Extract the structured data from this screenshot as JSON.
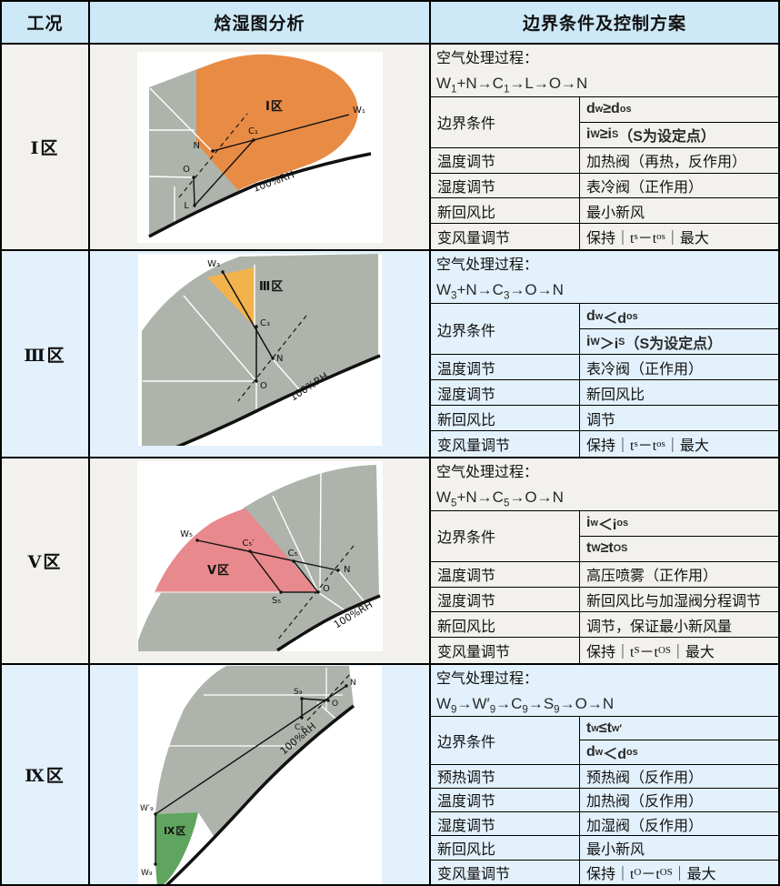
{
  "header": {
    "col1": "工况",
    "col2": "焓湿图分析",
    "col3": "边界条件及控制方案"
  },
  "labels": {
    "process": "空气处理过程：",
    "rh": "100%RH"
  },
  "colors": {
    "zone1_region": "#E88B45",
    "zone3_region": "#F2B24C",
    "zone5_region": "#E8898D",
    "zone9_region": "#5FA55F",
    "chart_gray": "#AEB4AB",
    "header_bg": "#CDE8F6",
    "row_light": "#F2F1EE",
    "row_blue": "#E2F1FB"
  },
  "rows": [
    {
      "zone": "Ⅰ区",
      "formula": "W~1~+N→C~1~→L→O→N",
      "details": [
        {
          "label": "边界条件",
          "values": [
            "d~w~≥d~os~",
            "i~W~≥i~S~（S为设定点）"
          ]
        },
        {
          "label": "温度调节",
          "values": [
            "加热阀（再热，反作用）"
          ]
        },
        {
          "label": "湿度调节",
          "values": [
            "表冷阀（正作用）"
          ]
        },
        {
          "label": "新回风比",
          "values": [
            "最小新风"
          ]
        },
        {
          "label": "变风量调节",
          "values": [
            "保持｜t~s~－t~os~｜最大"
          ]
        }
      ],
      "diagram": {
        "region_label": "Ⅰ区",
        "points": {
          "w": "W₁",
          "c": "C₁",
          "n": "N",
          "o": "O",
          "l": "L"
        }
      }
    },
    {
      "zone": "Ⅲ区",
      "formula": "W~3~+N→C~3~→O→N",
      "details": [
        {
          "label": "边界条件",
          "values": [
            "d~w~＜d~os~",
            "i~W~＞i~S~（S为设定点）"
          ]
        },
        {
          "label": "温度调节",
          "values": [
            "表冷阀（正作用）"
          ]
        },
        {
          "label": "湿度调节",
          "values": [
            "新回风比"
          ]
        },
        {
          "label": "新回风比",
          "values": [
            "调节"
          ]
        },
        {
          "label": "变风量调节",
          "values": [
            "保持｜t~s~－t~os~｜最大"
          ]
        }
      ],
      "diagram": {
        "region_label": "Ⅲ区",
        "points": {
          "w": "W₃",
          "c": "C₃",
          "n": "N",
          "o": "O"
        }
      }
    },
    {
      "zone": "Ⅴ区",
      "formula": "W~5~+N→C~5~→O→N",
      "details": [
        {
          "label": "边界条件",
          "values": [
            "i~w~＜i~os~",
            "t~W~≥t~OS~"
          ]
        },
        {
          "label": "温度调节",
          "values": [
            "高压喷雾（正作用）"
          ]
        },
        {
          "label": "湿度调节",
          "values": [
            "新回风比与加湿阀分程调节"
          ]
        },
        {
          "label": "新回风比",
          "values": [
            "调节，保证最小新风量"
          ]
        },
        {
          "label": "变风量调节",
          "values": [
            "保持｜t~S~－t~OS~｜最大"
          ]
        }
      ],
      "diagram": {
        "region_label": "Ⅴ区",
        "points": {
          "w": "W₅",
          "c1": "C₅′",
          "c2": "C₅",
          "n": "N",
          "o": "O",
          "s": "S₅"
        }
      }
    },
    {
      "zone": "Ⅸ区",
      "formula": "W~9~→W′~9~→C~9~→S~9~→O→N",
      "details": [
        {
          "label": "边界条件",
          "values": [
            "t~w~≤t~w′~",
            "d~w~＜d~os~"
          ]
        },
        {
          "label": "预热调节",
          "values": [
            "预热阀（反作用）"
          ]
        },
        {
          "label": "温度调节",
          "values": [
            "加热阀（反作用）"
          ]
        },
        {
          "label": "湿度调节",
          "values": [
            "加湿阀（反作用）"
          ]
        },
        {
          "label": "新回风比",
          "values": [
            "最小新风"
          ]
        },
        {
          "label": "变风量调节",
          "values": [
            "保持｜t~O~－t~OS~｜最大"
          ]
        }
      ],
      "diagram": {
        "region_label": "Ⅸ区",
        "points": {
          "wp": "W′₉",
          "w": "W₉",
          "s": "S₉",
          "c": "C₉",
          "o": "O",
          "n": "N"
        }
      }
    }
  ]
}
